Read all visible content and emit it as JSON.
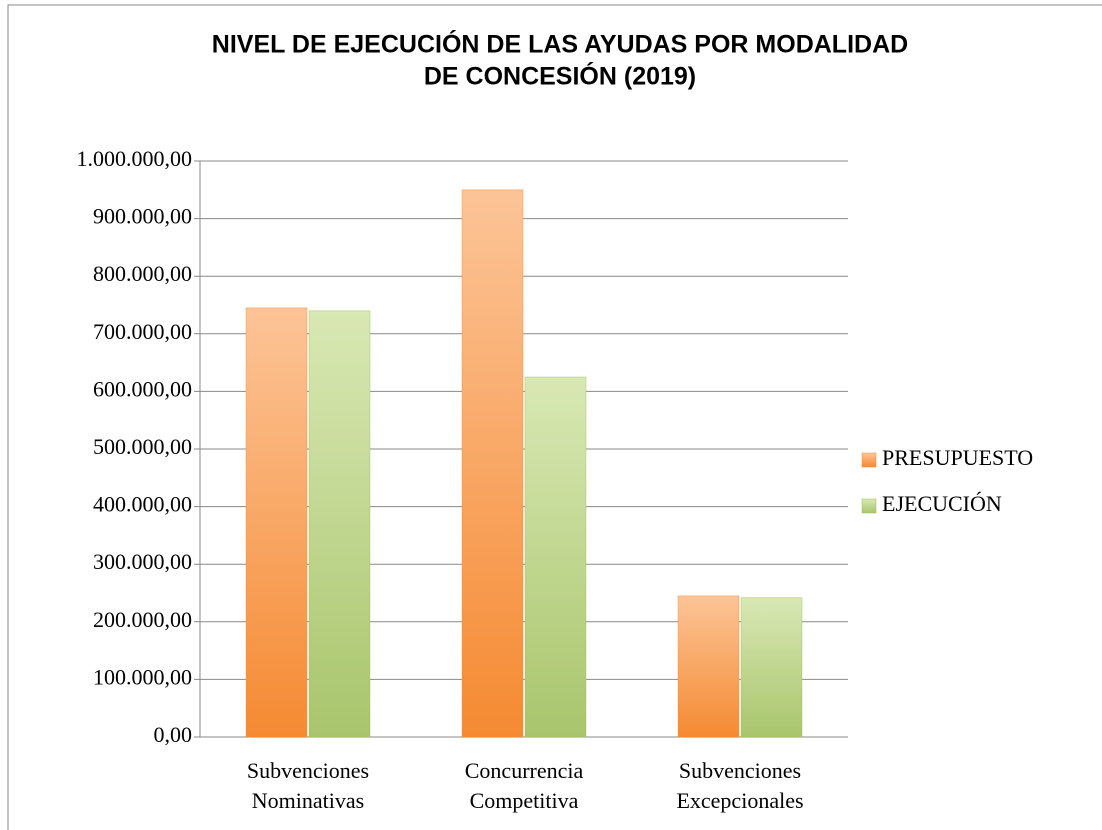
{
  "chart_data": {
    "type": "bar",
    "title": [
      "NIVEL DE EJECUCIÓN DE LAS AYUDAS POR MODALIDAD",
      "DE CONCESIÓN (2019)"
    ],
    "categories": [
      [
        "Subvenciones",
        "Nominativas"
      ],
      [
        "Concurrencia",
        "Competitiva"
      ],
      [
        "Subvenciones",
        "Excepcionales"
      ]
    ],
    "series": [
      {
        "name": "PRESUPUESTO",
        "color": "#f58a32",
        "values": [
          745000,
          950000,
          245000
        ]
      },
      {
        "name": "EJECUCIÓN",
        "color": "#9bbb59",
        "values": [
          740000,
          625000,
          242000
        ]
      }
    ],
    "ylim": [
      0,
      1000000
    ],
    "yticks": [
      {
        "value": 0,
        "label": "0,00"
      },
      {
        "value": 100000,
        "label": "100.000,00"
      },
      {
        "value": 200000,
        "label": "200.000,00"
      },
      {
        "value": 300000,
        "label": "300.000,00"
      },
      {
        "value": 400000,
        "label": "400.000,00"
      },
      {
        "value": 500000,
        "label": "500.000,00"
      },
      {
        "value": 600000,
        "label": "600.000,00"
      },
      {
        "value": 700000,
        "label": "700.000,00"
      },
      {
        "value": 800000,
        "label": "800.000,00"
      },
      {
        "value": 900000,
        "label": "900.000,00"
      },
      {
        "value": 1000000,
        "label": "1.000.000,00"
      }
    ],
    "grid": true,
    "legend": "right"
  }
}
